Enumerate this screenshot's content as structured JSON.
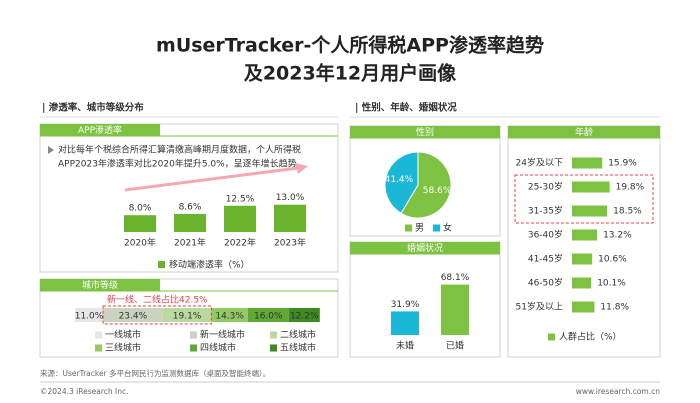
{
  "title_lines": [
    "mUserTracker-个人所得税APP渗透率趋势",
    "及2023年12月用户画像"
  ],
  "left_heading": "| 渗透率、城市等级分布",
  "right_heading": "| 性别、年龄、婚姻状况",
  "chart_data": [
    {
      "type": "bar",
      "title": "APP渗透率",
      "note": [
        "对比每年个税综合所得汇算清缴高峰期月度数据，个人所得税",
        "APP2023年渗透率对比2020年提升5.0%，呈逐年增长趋势"
      ],
      "categories": [
        "2020年",
        "2021年",
        "2022年",
        "2023年"
      ],
      "series": [
        {
          "name": "移动端渗透率（%）",
          "color": "#6ab42d",
          "values": [
            8.0,
            8.6,
            12.5,
            13.0
          ],
          "value_labels": [
            "8.0%",
            "8.6%",
            "12.5%",
            "13.0%"
          ]
        }
      ]
    },
    {
      "type": "stacked-bar",
      "title": "城市等级",
      "annotation": "新一线、二线占比42.5%",
      "categories": [
        "一线城市",
        "新一线城市",
        "二线城市",
        "三线城市",
        "四线城市",
        "五线城市"
      ],
      "values": [
        11.0,
        23.4,
        19.1,
        14.3,
        16.0,
        12.2
      ],
      "value_labels": [
        "11.0%",
        "23.4%",
        "19.1%",
        "14.3%",
        "16.0%",
        "12.2%"
      ],
      "colors": [
        "#e6e6e6",
        "#c9d3c0",
        "#b9d99d",
        "#93c963",
        "#5fa834",
        "#3e8a22"
      ]
    },
    {
      "type": "pie",
      "title": "性别",
      "categories": [
        "男",
        "女"
      ],
      "values": [
        58.6,
        41.4
      ],
      "value_labels": [
        "58.6%",
        "41.4%"
      ],
      "colors": [
        "#7dc241",
        "#1bb7d6"
      ]
    },
    {
      "type": "bar",
      "title": "婚姻状况",
      "categories": [
        "未婚",
        "已婚"
      ],
      "values": [
        31.9,
        68.1
      ],
      "value_labels": [
        "31.9%",
        "68.1%"
      ],
      "colors": [
        "#1bb7d6",
        "#7dc241"
      ]
    },
    {
      "type": "horizontal-bar",
      "title": "年龄",
      "categories": [
        "24岁及以下",
        "25-30岁",
        "31-35岁",
        "36-40岁",
        "41-45岁",
        "46-50岁",
        "51岁及以上"
      ],
      "series": [
        {
          "name": "人群占比（%）",
          "color": "#7dc241",
          "values": [
            15.9,
            19.8,
            18.5,
            13.2,
            10.6,
            10.1,
            11.8
          ],
          "value_labels": [
            "15.9%",
            "19.8%",
            "18.5%",
            "13.2%",
            "10.6%",
            "10.1%",
            "11.8%"
          ]
        }
      ]
    }
  ],
  "footer": {
    "source": "来源：UserTracker 多平台网民行为监测数据库（桌面及智能终端）。",
    "copyright": "©2024.3 iResearch Inc.",
    "url": "www.iresearch.com.cn"
  }
}
